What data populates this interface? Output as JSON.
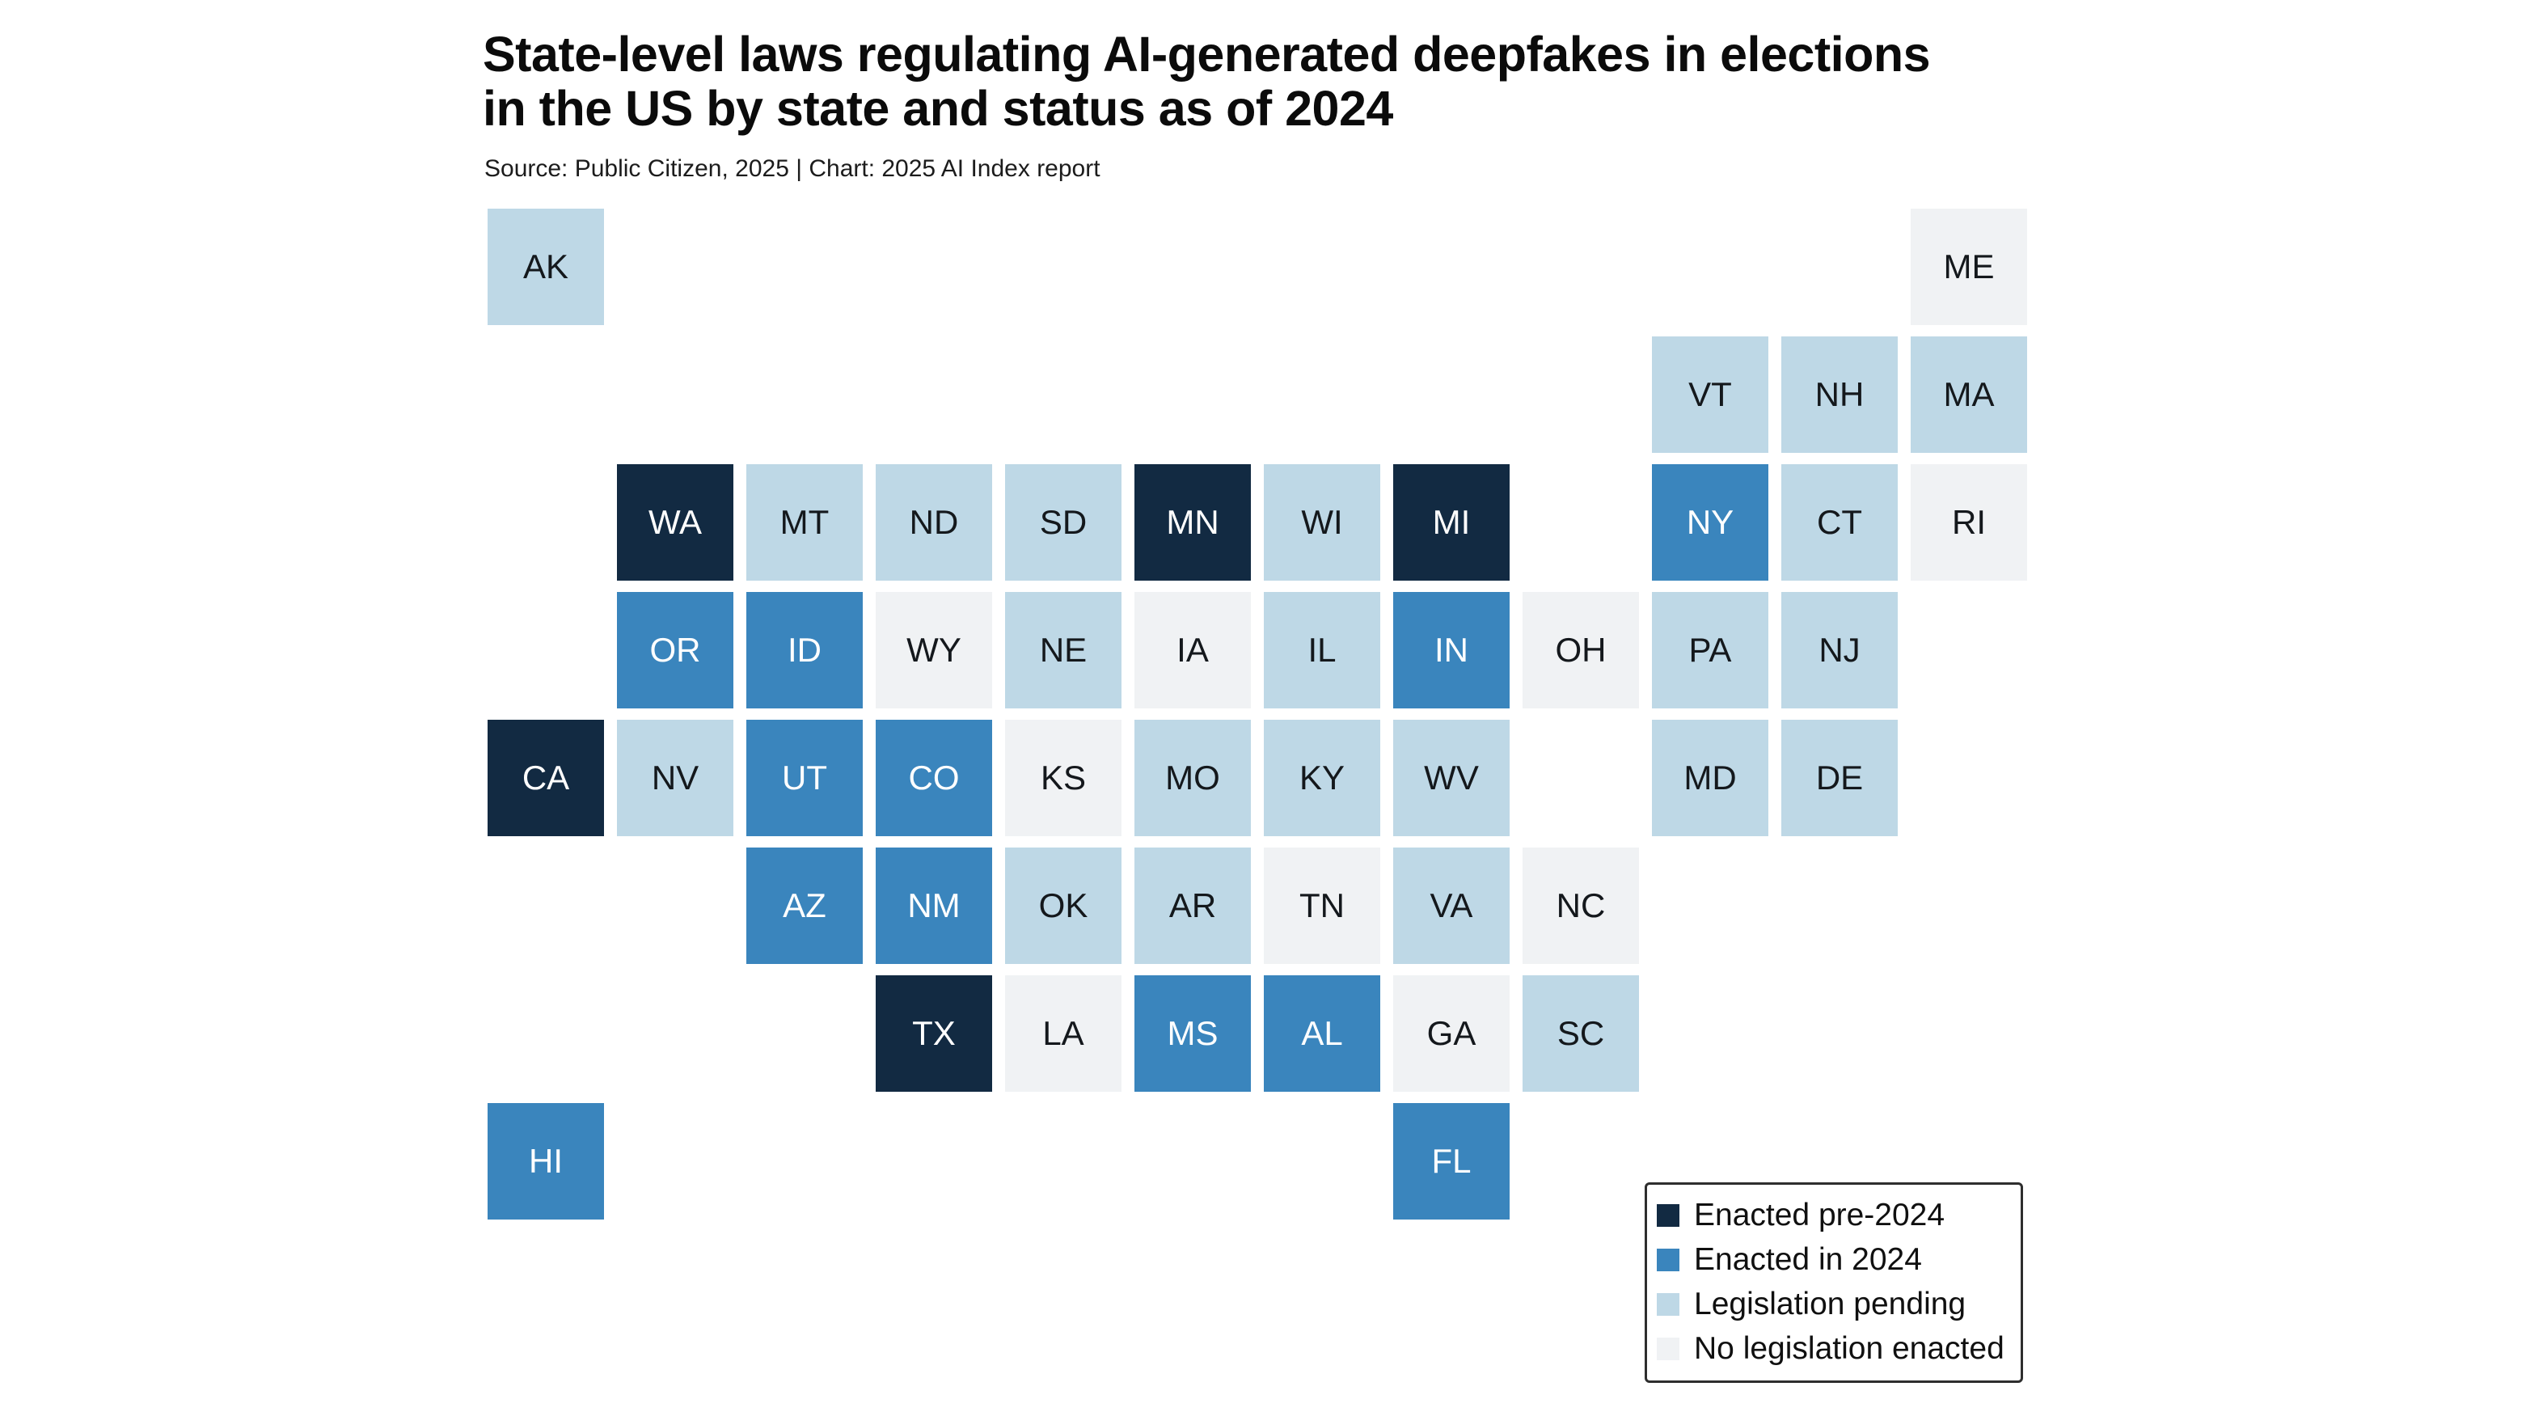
{
  "chart_data": {
    "type": "tile-grid-map",
    "title": "State-level laws regulating AI-generated deepfakes in elections\nin the US by state and status as of 2024",
    "source": "Source: Public Citizen, 2025 | Chart: 2025 AI Index report",
    "legend_position": "bottom-right",
    "grid": {
      "rows": 8,
      "columns": 12
    },
    "legend": [
      {
        "key": "enacted_pre_2024",
        "label": "Enacted pre-2024",
        "color": "#122a42"
      },
      {
        "key": "enacted_in_2024",
        "label": "Enacted in 2024",
        "color": "#3a85bd"
      },
      {
        "key": "legislation_pending",
        "label": "Legislation pending",
        "color": "#bed8e6"
      },
      {
        "key": "no_legislation",
        "label": "No legislation enacted",
        "color": "#f0f2f4"
      }
    ],
    "states": [
      {
        "abbr": "AK",
        "row": 0,
        "col": 0,
        "status": "legislation_pending"
      },
      {
        "abbr": "ME",
        "row": 0,
        "col": 11,
        "status": "no_legislation"
      },
      {
        "abbr": "VT",
        "row": 1,
        "col": 9,
        "status": "legislation_pending"
      },
      {
        "abbr": "NH",
        "row": 1,
        "col": 10,
        "status": "legislation_pending"
      },
      {
        "abbr": "MA",
        "row": 1,
        "col": 11,
        "status": "legislation_pending"
      },
      {
        "abbr": "WA",
        "row": 2,
        "col": 1,
        "status": "enacted_pre_2024"
      },
      {
        "abbr": "MT",
        "row": 2,
        "col": 2,
        "status": "legislation_pending"
      },
      {
        "abbr": "ND",
        "row": 2,
        "col": 3,
        "status": "legislation_pending"
      },
      {
        "abbr": "SD",
        "row": 2,
        "col": 4,
        "status": "legislation_pending"
      },
      {
        "abbr": "MN",
        "row": 2,
        "col": 5,
        "status": "enacted_pre_2024"
      },
      {
        "abbr": "WI",
        "row": 2,
        "col": 6,
        "status": "legislation_pending"
      },
      {
        "abbr": "MI",
        "row": 2,
        "col": 7,
        "status": "enacted_pre_2024"
      },
      {
        "abbr": "NY",
        "row": 2,
        "col": 9,
        "status": "enacted_in_2024"
      },
      {
        "abbr": "CT",
        "row": 2,
        "col": 10,
        "status": "legislation_pending"
      },
      {
        "abbr": "RI",
        "row": 2,
        "col": 11,
        "status": "no_legislation"
      },
      {
        "abbr": "OR",
        "row": 3,
        "col": 1,
        "status": "enacted_in_2024"
      },
      {
        "abbr": "ID",
        "row": 3,
        "col": 2,
        "status": "enacted_in_2024"
      },
      {
        "abbr": "WY",
        "row": 3,
        "col": 3,
        "status": "no_legislation"
      },
      {
        "abbr": "NE",
        "row": 3,
        "col": 4,
        "status": "legislation_pending"
      },
      {
        "abbr": "IA",
        "row": 3,
        "col": 5,
        "status": "no_legislation"
      },
      {
        "abbr": "IL",
        "row": 3,
        "col": 6,
        "status": "legislation_pending"
      },
      {
        "abbr": "IN",
        "row": 3,
        "col": 7,
        "status": "enacted_in_2024"
      },
      {
        "abbr": "OH",
        "row": 3,
        "col": 8,
        "status": "no_legislation"
      },
      {
        "abbr": "PA",
        "row": 3,
        "col": 9,
        "status": "legislation_pending"
      },
      {
        "abbr": "NJ",
        "row": 3,
        "col": 10,
        "status": "legislation_pending"
      },
      {
        "abbr": "CA",
        "row": 4,
        "col": 0,
        "status": "enacted_pre_2024"
      },
      {
        "abbr": "NV",
        "row": 4,
        "col": 1,
        "status": "legislation_pending"
      },
      {
        "abbr": "UT",
        "row": 4,
        "col": 2,
        "status": "enacted_in_2024"
      },
      {
        "abbr": "CO",
        "row": 4,
        "col": 3,
        "status": "enacted_in_2024"
      },
      {
        "abbr": "KS",
        "row": 4,
        "col": 4,
        "status": "no_legislation"
      },
      {
        "abbr": "MO",
        "row": 4,
        "col": 5,
        "status": "legislation_pending"
      },
      {
        "abbr": "KY",
        "row": 4,
        "col": 6,
        "status": "legislation_pending"
      },
      {
        "abbr": "WV",
        "row": 4,
        "col": 7,
        "status": "legislation_pending"
      },
      {
        "abbr": "MD",
        "row": 4,
        "col": 9,
        "status": "legislation_pending"
      },
      {
        "abbr": "DE",
        "row": 4,
        "col": 10,
        "status": "legislation_pending"
      },
      {
        "abbr": "AZ",
        "row": 5,
        "col": 2,
        "status": "enacted_in_2024"
      },
      {
        "abbr": "NM",
        "row": 5,
        "col": 3,
        "status": "enacted_in_2024"
      },
      {
        "abbr": "OK",
        "row": 5,
        "col": 4,
        "status": "legislation_pending"
      },
      {
        "abbr": "AR",
        "row": 5,
        "col": 5,
        "status": "legislation_pending"
      },
      {
        "abbr": "TN",
        "row": 5,
        "col": 6,
        "status": "no_legislation"
      },
      {
        "abbr": "VA",
        "row": 5,
        "col": 7,
        "status": "legislation_pending"
      },
      {
        "abbr": "NC",
        "row": 5,
        "col": 8,
        "status": "no_legislation"
      },
      {
        "abbr": "TX",
        "row": 6,
        "col": 3,
        "status": "enacted_pre_2024"
      },
      {
        "abbr": "LA",
        "row": 6,
        "col": 4,
        "status": "no_legislation"
      },
      {
        "abbr": "MS",
        "row": 6,
        "col": 5,
        "status": "enacted_in_2024"
      },
      {
        "abbr": "AL",
        "row": 6,
        "col": 6,
        "status": "enacted_in_2024"
      },
      {
        "abbr": "GA",
        "row": 6,
        "col": 7,
        "status": "no_legislation"
      },
      {
        "abbr": "SC",
        "row": 6,
        "col": 8,
        "status": "legislation_pending"
      },
      {
        "abbr": "HI",
        "row": 7,
        "col": 0,
        "status": "enacted_in_2024"
      },
      {
        "abbr": "FL",
        "row": 7,
        "col": 7,
        "status": "enacted_in_2024"
      }
    ]
  }
}
